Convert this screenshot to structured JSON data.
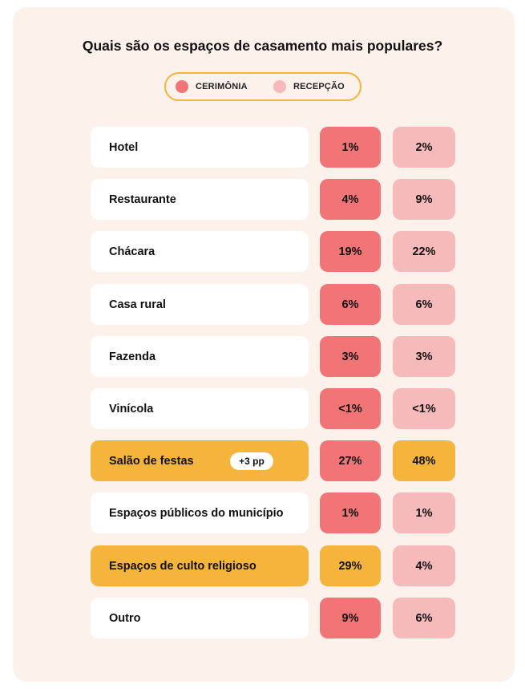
{
  "colors": {
    "background": "#fdf1ec",
    "ceremony": "#f17576",
    "reception": "#f7babb",
    "highlight": "#f5b43c",
    "label_box": "#ffffff"
  },
  "chart_data": {
    "type": "table",
    "title": "Quais são os espaços de casamento mais populares?",
    "legend": {
      "placement": "top-center",
      "entries": [
        {
          "key": "ceremony",
          "label": "CERIMÔNIA",
          "color": "#f17576"
        },
        {
          "key": "reception",
          "label": "RECEPÇÃO",
          "color": "#f7babb"
        }
      ]
    },
    "series": [
      {
        "name": "CERIMÔNIA",
        "values": [
          1,
          4,
          19,
          6,
          3,
          null,
          27,
          1,
          29,
          9
        ]
      },
      {
        "name": "RECEPÇÃO",
        "values": [
          2,
          9,
          22,
          6,
          3,
          null,
          48,
          1,
          4,
          6
        ]
      }
    ],
    "rows": [
      {
        "label": "Hotel",
        "ceremony": "1%",
        "reception": "2%",
        "highlight_label": false,
        "highlight_ceremony": false,
        "highlight_reception": false,
        "badge": ""
      },
      {
        "label": "Restaurante",
        "ceremony": "4%",
        "reception": "9%",
        "highlight_label": false,
        "highlight_ceremony": false,
        "highlight_reception": false,
        "badge": ""
      },
      {
        "label": "Chácara",
        "ceremony": "19%",
        "reception": "22%",
        "highlight_label": false,
        "highlight_ceremony": false,
        "highlight_reception": false,
        "badge": ""
      },
      {
        "label": "Casa rural",
        "ceremony": "6%",
        "reception": "6%",
        "highlight_label": false,
        "highlight_ceremony": false,
        "highlight_reception": false,
        "badge": ""
      },
      {
        "label": "Fazenda",
        "ceremony": "3%",
        "reception": "3%",
        "highlight_label": false,
        "highlight_ceremony": false,
        "highlight_reception": false,
        "badge": ""
      },
      {
        "label": "Vinícola",
        "ceremony": "<1%",
        "reception": "<1%",
        "highlight_label": false,
        "highlight_ceremony": false,
        "highlight_reception": false,
        "badge": ""
      },
      {
        "label": "Salão de festas",
        "ceremony": "27%",
        "reception": "48%",
        "highlight_label": true,
        "highlight_ceremony": false,
        "highlight_reception": true,
        "badge": "+3 pp"
      },
      {
        "label": "Espaços públicos do município",
        "ceremony": "1%",
        "reception": "1%",
        "highlight_label": false,
        "highlight_ceremony": false,
        "highlight_reception": false,
        "badge": ""
      },
      {
        "label": "Espaços de culto religioso",
        "ceremony": "29%",
        "reception": "4%",
        "highlight_label": true,
        "highlight_ceremony": true,
        "highlight_reception": false,
        "badge": ""
      },
      {
        "label": "Outro",
        "ceremony": "9%",
        "reception": "6%",
        "highlight_label": false,
        "highlight_ceremony": false,
        "highlight_reception": false,
        "badge": ""
      }
    ]
  }
}
